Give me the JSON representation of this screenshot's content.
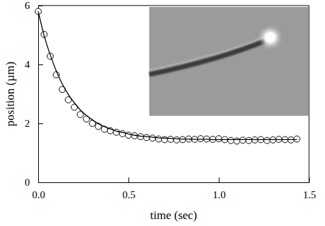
{
  "chart_data": {
    "type": "scatter",
    "xlabel": "time (sec)",
    "ylabel": "position (µm)",
    "x": [
      0,
      0.033,
      0.067,
      0.1,
      0.133,
      0.167,
      0.2,
      0.233,
      0.267,
      0.3,
      0.333,
      0.367,
      0.4,
      0.433,
      0.467,
      0.5,
      0.533,
      0.567,
      0.6,
      0.633,
      0.667,
      0.7,
      0.733,
      0.767,
      0.8,
      0.833,
      0.867,
      0.9,
      0.933,
      0.967,
      1.0,
      1.033,
      1.067,
      1.1,
      1.133,
      1.167,
      1.2,
      1.233,
      1.267,
      1.3,
      1.333,
      1.367,
      1.4,
      1.433
    ],
    "series": [
      {
        "type": "scatter",
        "marker": "circle",
        "color": "#000000",
        "values": [
          5.8,
          5.02,
          4.28,
          3.65,
          3.15,
          2.8,
          2.55,
          2.3,
          2.15,
          2.0,
          1.9,
          1.8,
          1.75,
          1.7,
          1.65,
          1.6,
          1.58,
          1.55,
          1.52,
          1.5,
          1.47,
          1.45,
          1.46,
          1.44,
          1.45,
          1.47,
          1.46,
          1.48,
          1.47,
          1.46,
          1.48,
          1.45,
          1.42,
          1.4,
          1.43,
          1.42,
          1.44,
          1.45,
          1.42,
          1.44,
          1.46,
          1.45,
          1.44,
          1.47
        ]
      },
      {
        "type": "line",
        "line_style": "solid",
        "color": "#000000",
        "values": [
          5.8,
          4.98,
          4.32,
          3.78,
          3.34,
          2.98,
          2.7,
          2.46,
          2.27,
          2.12,
          1.99,
          1.89,
          1.81,
          1.74,
          1.69,
          1.64,
          1.6,
          1.57,
          1.55,
          1.53,
          1.51,
          1.5,
          1.49,
          1.48,
          1.47,
          1.47,
          1.46,
          1.46,
          1.46,
          1.45,
          1.45,
          1.45,
          1.45,
          1.45,
          1.45,
          1.45,
          1.45,
          1.45,
          1.45,
          1.45,
          1.45,
          1.45,
          1.45,
          1.45
        ]
      }
    ],
    "xlim": [
      0,
      1.5
    ],
    "xticks": [
      {
        "value": 0,
        "label": "0.0"
      },
      0.5,
      {
        "value": 1,
        "label": "1.0"
      },
      1.5
    ],
    "ylim": [
      0,
      6
    ],
    "yticks": [
      0,
      2,
      4,
      6
    ],
    "grid": false
  }
}
